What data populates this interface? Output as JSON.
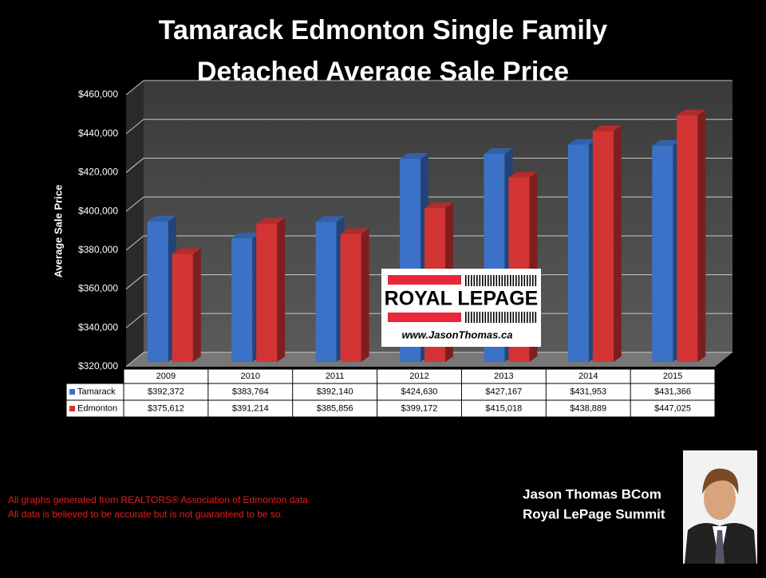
{
  "chart_data": {
    "type": "bar",
    "title": "Tamarack Edmonton Single Family",
    "subtitle": "Detached Average Sale Price",
    "y_label": "Average Sale Price",
    "categories": [
      "2009",
      "2010",
      "2011",
      "2012",
      "2013",
      "2014",
      "2015"
    ],
    "series": [
      {
        "name": "Tamarack",
        "color": "#3b72c8",
        "values": [
          392372,
          383764,
          392140,
          424630,
          427167,
          431953,
          431366
        ],
        "value_labels": [
          "$392,372",
          "$383,764",
          "$392,140",
          "$424,630",
          "$427,167",
          "$431,953",
          "$431,366"
        ]
      },
      {
        "name": "Edmonton",
        "color": "#d23434",
        "values": [
          375612,
          391214,
          385856,
          399172,
          415018,
          438889,
          447025
        ],
        "value_labels": [
          "$375,612",
          "$391,214",
          "$385,856",
          "$399,172",
          "$415,018",
          "$438,889",
          "$447,025"
        ]
      }
    ],
    "ylim": [
      320000,
      460000
    ],
    "yticks": [
      {
        "value": 320000,
        "label": "$320,000"
      },
      {
        "value": 340000,
        "label": "$340,000"
      },
      {
        "value": 360000,
        "label": "$360,000"
      },
      {
        "value": 380000,
        "label": "$380,000"
      },
      {
        "value": 400000,
        "label": "$400,000"
      },
      {
        "value": 420000,
        "label": "$420,000"
      },
      {
        "value": 440000,
        "label": "$440,000"
      },
      {
        "value": 460000,
        "label": "$460,000"
      }
    ],
    "grid": true
  },
  "logo": {
    "brand": "ROYAL LEPAGE",
    "url": "www.JasonThomas.ca"
  },
  "notes": [
    "All graphs generated from REALTORS® Association of Edmonton data",
    "All data is believed to be accurate but is not guaranteed to be so."
  ],
  "author": {
    "name": "Jason Thomas BCom",
    "company": "Royal LePage Summit"
  }
}
